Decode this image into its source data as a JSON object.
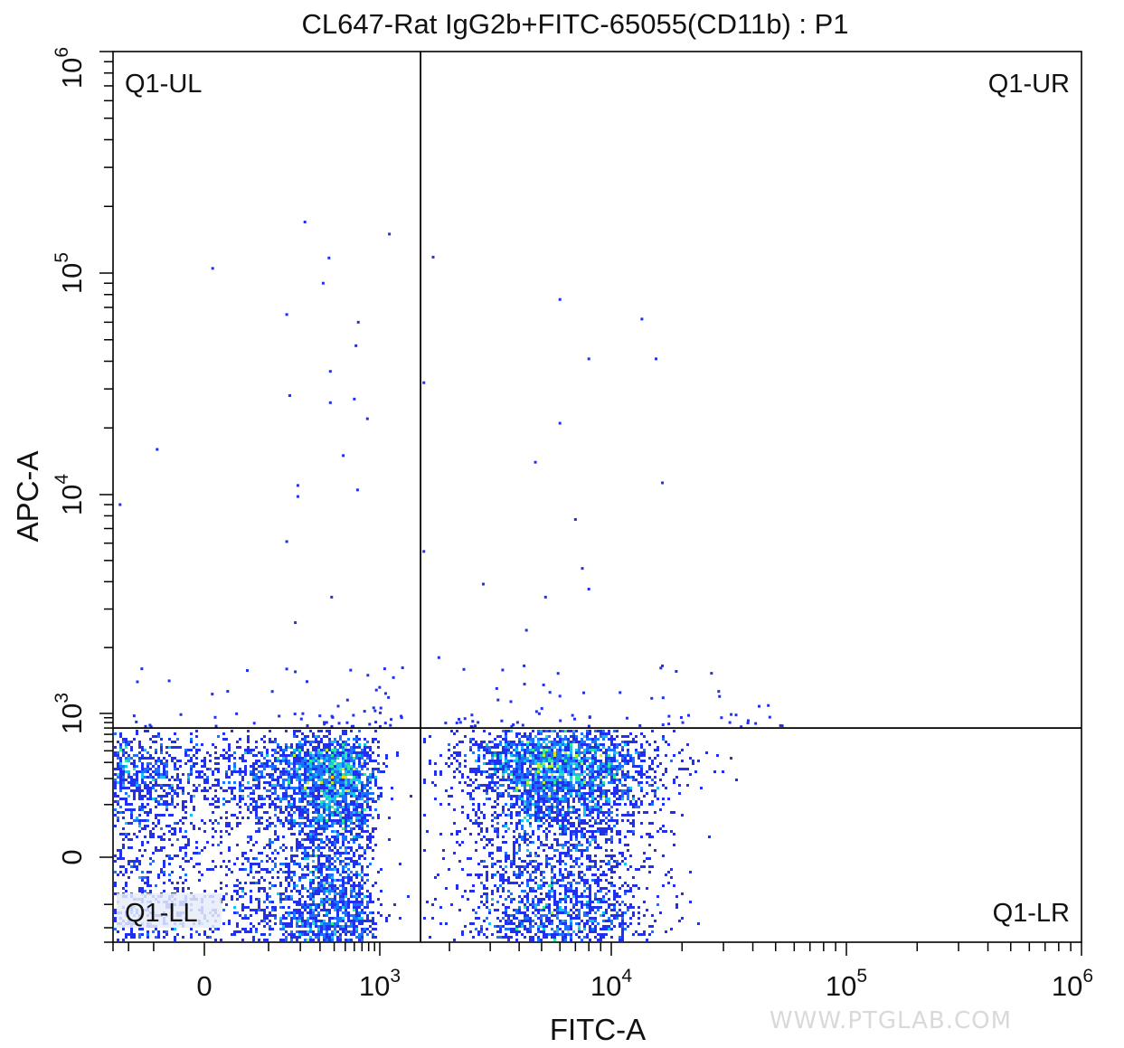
{
  "chart_data": {
    "type": "scatter",
    "style": "density-dot-plot",
    "title": "CL647-Rat IgG2b+FITC-65055(CD11b) : P1",
    "xlabel": "FITC-A",
    "ylabel": "APC-A",
    "x_scale": "biexponential",
    "y_scale": "biexponential",
    "xlim": [
      -300,
      1000000
    ],
    "ylim": [
      -300,
      1000000
    ],
    "x_ticks": [
      {
        "value": 0,
        "label": "0"
      },
      {
        "value": 1000,
        "base": "10",
        "exp": "3"
      },
      {
        "value": 10000,
        "base": "10",
        "exp": "4"
      },
      {
        "value": 100000,
        "base": "10",
        "exp": "5"
      },
      {
        "value": 1000000,
        "base": "10",
        "exp": "6"
      }
    ],
    "y_ticks": [
      {
        "value": 0,
        "label": "0"
      },
      {
        "value": 1000,
        "base": "10",
        "exp": "3"
      },
      {
        "value": 10000,
        "base": "10",
        "exp": "4"
      },
      {
        "value": 100000,
        "base": "10",
        "exp": "5"
      },
      {
        "value": 1000000,
        "base": "10",
        "exp": "6"
      }
    ],
    "gates": {
      "x_threshold": 1500,
      "y_threshold": 700
    },
    "quadrant_labels": {
      "ul": "Q1-UL",
      "ur": "Q1-UR",
      "ll": "Q1-LL",
      "lr": "Q1-LR"
    },
    "populations": [
      {
        "name": "",
        "center_x": 200,
        "center_y": 80,
        "spread_x": 320,
        "spread_y": 210,
        "count": 5200
      },
      {
        "name": "",
        "center_x": 6000,
        "center_y": 120,
        "spread_x": 0.21,
        "spread_y": 230,
        "count": 4200
      }
    ],
    "outliers": [
      [
        220,
        170000
      ],
      [
        10,
        105000
      ],
      [
        360,
        117000
      ],
      [
        320,
        90000
      ],
      [
        1100,
        150000
      ],
      [
        150,
        65000
      ],
      [
        650,
        60000
      ],
      [
        620,
        47000
      ],
      [
        370,
        36000
      ],
      [
        160,
        28000
      ],
      [
        370,
        26000
      ],
      [
        600,
        27000
      ],
      [
        780,
        22000
      ],
      [
        -90,
        16000
      ],
      [
        480,
        15000
      ],
      [
        640,
        10500
      ],
      [
        190,
        11000
      ],
      [
        190,
        9800
      ],
      [
        -250,
        9000
      ],
      [
        150,
        6100
      ],
      [
        380,
        3400
      ],
      [
        180,
        2600
      ],
      [
        180,
        1550
      ],
      [
        -140,
        1600
      ],
      [
        1050,
        1600
      ],
      [
        1700,
        118000
      ],
      [
        6000,
        76000
      ],
      [
        13500,
        62000
      ],
      [
        8000,
        41000
      ],
      [
        15500,
        41000
      ],
      [
        1550,
        32000
      ],
      [
        6000,
        21000
      ],
      [
        4700,
        14000
      ],
      [
        16500,
        11300
      ],
      [
        7000,
        7700
      ],
      [
        1550,
        5500
      ],
      [
        7500,
        4600
      ],
      [
        8000,
        3700
      ],
      [
        2800,
        3900
      ],
      [
        5200,
        3400
      ],
      [
        4300,
        2400
      ],
      [
        1800,
        1800
      ],
      [
        4200,
        1650
      ],
      [
        5100,
        1350
      ],
      [
        3200,
        1300
      ],
      [
        16500,
        1650
      ],
      [
        6000,
        1200
      ]
    ],
    "colorscale": [
      "#2030ee",
      "#1a72ff",
      "#18c0f0",
      "#2ee8a0",
      "#b6f03c",
      "#ffd400",
      "#ff5a00",
      "#e00000"
    ],
    "watermark": "WWW.PTGLAB.COM"
  }
}
